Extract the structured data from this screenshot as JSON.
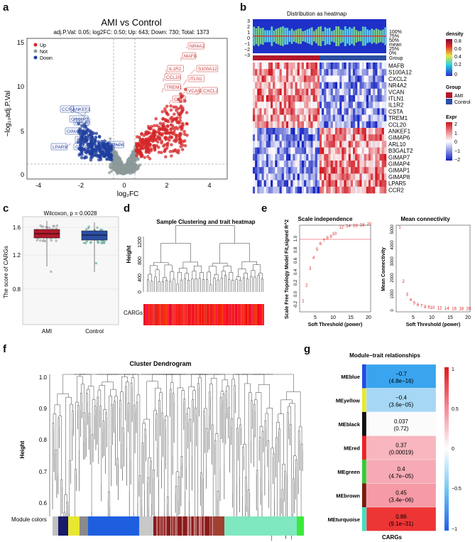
{
  "panel_labels": {
    "a": "a",
    "b": "b",
    "c": "c",
    "d": "d",
    "e": "e",
    "f": "f",
    "g": "g"
  },
  "colors": {
    "up": "#d62728",
    "not": "#8c9a9a",
    "down": "#1f3f9f",
    "ami": "#b2182b",
    "control": "#2b4ea2"
  },
  "volcano": {
    "title": "AMI vs Control",
    "subtitle": "adj.P.Val: 0.05; log2FC: 0.50; Up: 643; Down: 730; Total: 1373",
    "xlabel": "log₂FC",
    "ylabel": "−log₁₀adj.P.Val",
    "legend": [
      "Up",
      "Not",
      "Down"
    ],
    "xticks": [
      "-4",
      "-2",
      "0",
      "2",
      "4"
    ],
    "yticks": [
      "0",
      "5",
      "10",
      "15"
    ],
    "up_labels": [
      "NR4A2",
      "MAFB",
      "IL1R2",
      "S100A12",
      "CCL20",
      "ITLN1",
      "TREM1",
      "VCAN",
      "CXCL2",
      "CSTA"
    ],
    "down_labels": [
      "CCR2",
      "ANKEF1",
      "GIMAP7",
      "ARL10",
      "GIMAP1",
      "B3GALT2",
      "LPAR5",
      "GIMAP8",
      "GIMAP6",
      "GIMAP4"
    ]
  },
  "heatmap": {
    "title": "Distribution as heatmap",
    "ticks": [
      "3",
      "2",
      "1",
      "0",
      "−1",
      "−2",
      "−3"
    ],
    "quantiles": [
      "100%",
      "75%",
      "50%",
      "mean",
      "25%",
      "0%"
    ],
    "group_label": "Group",
    "genes": [
      "MAFB",
      "S100A12",
      "CXCL2",
      "NR4A2",
      "VCAN",
      "ITLN1",
      "IL1R2",
      "CSTA",
      "TREM1",
      "CCL20",
      "ANKEF1",
      "GIMAP6",
      "ARL10",
      "B3GALT2",
      "GIMAP7",
      "GIMAP4",
      "GIMAP1",
      "GIMAP8",
      "LPAR5",
      "CCR2"
    ],
    "legend_density": {
      "title": "density",
      "ticks": [
        "0.8",
        "0.6",
        "0.4",
        "0.2",
        "0"
      ]
    },
    "legend_group": {
      "title": "Group",
      "items": [
        "AMI",
        "Control"
      ]
    },
    "legend_expr": {
      "title": "Expr",
      "ticks": [
        "2",
        "1",
        "0",
        "−1",
        "−2"
      ]
    }
  },
  "boxplot": {
    "stat": "Wilcoxon, p = 0.0028",
    "ylabel": "The score of CARGs",
    "categories": [
      "AMI",
      "Control"
    ],
    "yticks": [
      "0.8",
      "1.2",
      "1.6"
    ]
  },
  "dendro": {
    "title": "Sample Clustering and trait heatmap",
    "ylabel": "Height",
    "yticks": [
      "0",
      "400",
      "800",
      "1200"
    ],
    "trait": "CARGs"
  },
  "scale": {
    "title": "Scale independence",
    "xlabel": "Soft Threshold (power)",
    "ylabel": "Scale Free Topology Model Fit,signed R^2",
    "xticks": [
      "5",
      "10",
      "15",
      "20"
    ],
    "yticks": [
      "-0.2",
      "0.0",
      "0.2",
      "0.4",
      "0.6",
      "0.8",
      "1.0"
    ],
    "powers": [
      "1",
      "2",
      "3",
      "4",
      "5",
      "6",
      "7",
      "8",
      "9",
      "10",
      "12",
      "14",
      "16",
      "18",
      "20"
    ]
  },
  "meanconn": {
    "title": "Mean connectivity",
    "xlabel": "Soft Threshold (power)",
    "ylabel": "Mean Connectivity",
    "yticks": [
      "0",
      "1000",
      "2000",
      "3000",
      "4000",
      "5000"
    ],
    "xticks": [
      "5",
      "10",
      "15",
      "20"
    ],
    "powers": [
      "1",
      "2",
      "3",
      "4",
      "5",
      "6",
      "7",
      "8",
      "9",
      "10",
      "12",
      "14",
      "16",
      "18",
      "20"
    ]
  },
  "cluster": {
    "title": "Cluster Dendrogram",
    "ylabel": "Height",
    "yticks": [
      "0.6",
      "0.7",
      "0.8",
      "0.9",
      "1.0"
    ],
    "module_label": "Module colors"
  },
  "modtrait": {
    "title": "Module−trait relationships",
    "xlabel": "CARGs",
    "modules": [
      {
        "name": "MEblue",
        "corr": "−0.7",
        "p": "(4.8e−16)",
        "color": "#1f4fe0",
        "fill": "#3aa4ee"
      },
      {
        "name": "MEyellow",
        "corr": "−0.4",
        "p": "(3.6e−05)",
        "color": "#e8e830",
        "fill": "#a6d8f5"
      },
      {
        "name": "MEblack",
        "corr": "0.037",
        "p": "(0.72)",
        "color": "#111111",
        "fill": "#fbfbfb"
      },
      {
        "name": "MEred",
        "corr": "0.37",
        "p": "(0.00019)",
        "color": "#ee2222",
        "fill": "#f8b6be"
      },
      {
        "name": "MEgreen",
        "corr": "0.4",
        "p": "(4.7e−05)",
        "color": "#33cc33",
        "fill": "#f6aab4"
      },
      {
        "name": "MEbrown",
        "corr": "0.45",
        "p": "(3.4e−06)",
        "color": "#7a1a10",
        "fill": "#f59aa6"
      },
      {
        "name": "MEturquoise",
        "corr": "0.86",
        "p": "(9.1e−31)",
        "color": "#40e0c0",
        "fill": "#ed3535"
      }
    ],
    "scale_ticks": [
      "1",
      "0.5",
      "0",
      "−0.5",
      "−1"
    ]
  }
}
